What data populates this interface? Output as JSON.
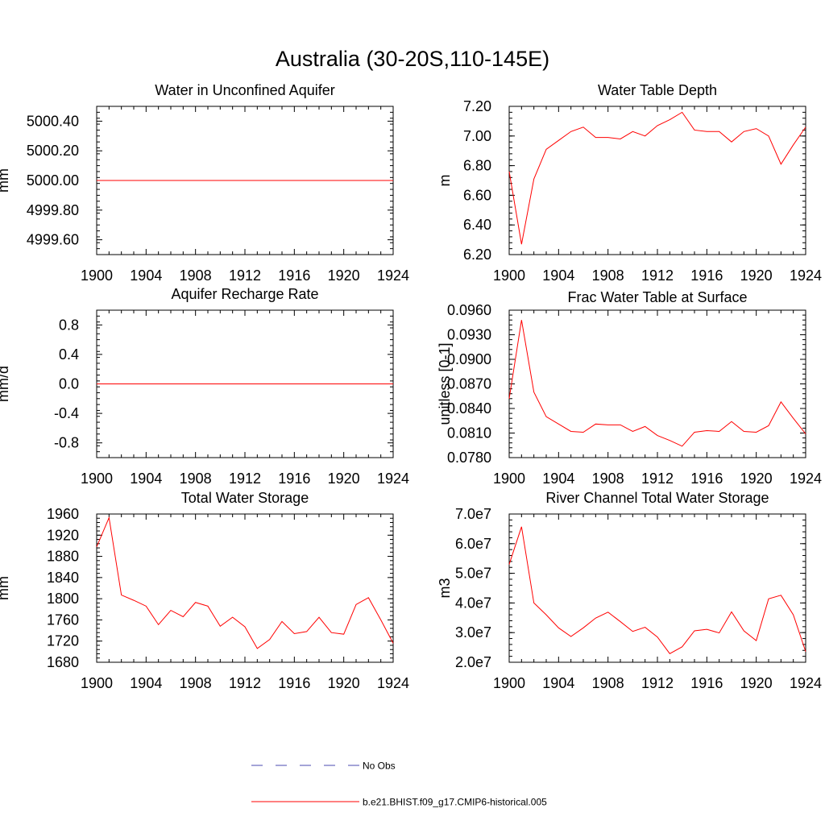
{
  "title": "Australia (30-20S,110-145E)",
  "legend": {
    "items": [
      {
        "label": "No Obs",
        "color": "#4a4ab0",
        "style": "dashed"
      },
      {
        "label": "b.e21.BHIST.f09_g17.CMIP6-historical.005",
        "color": "#ff0000",
        "style": "solid"
      }
    ]
  },
  "chart_data": [
    {
      "type": "line",
      "title": "Water in Unconfined Aquifer",
      "ylabel": "mm",
      "xlim": [
        1900,
        1924
      ],
      "ylim": [
        4999.5,
        5000.5
      ],
      "xticks": [
        "1900",
        "1904",
        "1908",
        "1912",
        "1916",
        "1920",
        "1924"
      ],
      "yticks": [
        {
          "value": 4999.6,
          "label": "4999.60"
        },
        {
          "value": 4999.8,
          "label": "4999.80"
        },
        {
          "value": 5000.0,
          "label": "5000.00"
        },
        {
          "value": 5000.2,
          "label": "5000.20"
        },
        {
          "value": 5000.4,
          "label": "5000.40"
        }
      ],
      "x": [
        1900,
        1901,
        1902,
        1903,
        1904,
        1905,
        1906,
        1907,
        1908,
        1909,
        1910,
        1911,
        1912,
        1913,
        1914,
        1915,
        1916,
        1917,
        1918,
        1919,
        1920,
        1921,
        1922,
        1923,
        1924
      ],
      "values": [
        5000,
        5000,
        5000,
        5000,
        5000,
        5000,
        5000,
        5000,
        5000,
        5000,
        5000,
        5000,
        5000,
        5000,
        5000,
        5000,
        5000,
        5000,
        5000,
        5000,
        5000,
        5000,
        5000,
        5000,
        5000
      ]
    },
    {
      "type": "line",
      "title": "Water Table Depth",
      "ylabel": "m",
      "xlim": [
        1900,
        1924
      ],
      "ylim": [
        6.2,
        7.2
      ],
      "xticks": [
        "1900",
        "1904",
        "1908",
        "1912",
        "1916",
        "1920",
        "1924"
      ],
      "yticks": [
        {
          "value": 6.2,
          "label": "6.20"
        },
        {
          "value": 6.4,
          "label": "6.40"
        },
        {
          "value": 6.6,
          "label": "6.60"
        },
        {
          "value": 6.8,
          "label": "6.80"
        },
        {
          "value": 7.0,
          "label": "7.00"
        },
        {
          "value": 7.2,
          "label": "7.20"
        }
      ],
      "x": [
        1900,
        1901,
        1902,
        1903,
        1904,
        1905,
        1906,
        1907,
        1908,
        1909,
        1910,
        1911,
        1912,
        1913,
        1914,
        1915,
        1916,
        1917,
        1918,
        1919,
        1920,
        1921,
        1922,
        1923,
        1924
      ],
      "values": [
        6.76,
        6.27,
        6.71,
        6.91,
        6.97,
        7.03,
        7.06,
        6.99,
        6.99,
        6.98,
        7.03,
        7.0,
        7.07,
        7.11,
        7.16,
        7.04,
        7.03,
        7.03,
        6.96,
        7.03,
        7.05,
        7.0,
        6.81,
        6.94,
        7.06
      ]
    },
    {
      "type": "line",
      "title": "Aquifer Recharge Rate",
      "ylabel": "mm/d",
      "xlim": [
        1900,
        1924
      ],
      "ylim": [
        -1.0,
        1.0
      ],
      "xticks": [
        "1900",
        "1904",
        "1908",
        "1912",
        "1916",
        "1920",
        "1924"
      ],
      "yticks": [
        {
          "value": -0.8,
          "label": "-0.8"
        },
        {
          "value": -0.4,
          "label": "-0.4"
        },
        {
          "value": 0.0,
          "label": "0.0"
        },
        {
          "value": 0.4,
          "label": "0.4"
        },
        {
          "value": 0.8,
          "label": "0.8"
        }
      ],
      "x": [
        1900,
        1901,
        1902,
        1903,
        1904,
        1905,
        1906,
        1907,
        1908,
        1909,
        1910,
        1911,
        1912,
        1913,
        1914,
        1915,
        1916,
        1917,
        1918,
        1919,
        1920,
        1921,
        1922,
        1923,
        1924
      ],
      "values": [
        0,
        0,
        0,
        0,
        0,
        0,
        0,
        0,
        0,
        0,
        0,
        0,
        0,
        0,
        0,
        0,
        0,
        0,
        0,
        0,
        0,
        0,
        0,
        0,
        0
      ]
    },
    {
      "type": "line",
      "title": "Frac Water Table at Surface",
      "ylabel": "unitless [0-1]",
      "xlim": [
        1900,
        1924
      ],
      "ylim": [
        0.078,
        0.096
      ],
      "xticks": [
        "1900",
        "1904",
        "1908",
        "1912",
        "1916",
        "1920",
        "1924"
      ],
      "yticks": [
        {
          "value": 0.078,
          "label": "0.0780"
        },
        {
          "value": 0.081,
          "label": "0.0810"
        },
        {
          "value": 0.084,
          "label": "0.0840"
        },
        {
          "value": 0.087,
          "label": "0.0870"
        },
        {
          "value": 0.09,
          "label": "0.0900"
        },
        {
          "value": 0.093,
          "label": "0.0930"
        },
        {
          "value": 0.096,
          "label": "0.0960"
        }
      ],
      "x": [
        1900,
        1901,
        1902,
        1903,
        1904,
        1905,
        1906,
        1907,
        1908,
        1909,
        1910,
        1911,
        1912,
        1913,
        1914,
        1915,
        1916,
        1917,
        1918,
        1919,
        1920,
        1921,
        1922,
        1923,
        1924
      ],
      "values": [
        0.0852,
        0.0948,
        0.086,
        0.083,
        0.0821,
        0.0812,
        0.0811,
        0.0821,
        0.082,
        0.082,
        0.0812,
        0.0818,
        0.0807,
        0.0801,
        0.0794,
        0.0811,
        0.0813,
        0.0812,
        0.0824,
        0.0812,
        0.0811,
        0.0819,
        0.0848,
        0.0828,
        0.0809
      ]
    },
    {
      "type": "line",
      "title": "Total Water Storage",
      "ylabel": "mm",
      "xlim": [
        1900,
        1924
      ],
      "ylim": [
        1680,
        1960
      ],
      "xticks": [
        "1900",
        "1904",
        "1908",
        "1912",
        "1916",
        "1920",
        "1924"
      ],
      "yticks": [
        {
          "value": 1680,
          "label": "1680"
        },
        {
          "value": 1720,
          "label": "1720"
        },
        {
          "value": 1760,
          "label": "1760"
        },
        {
          "value": 1800,
          "label": "1800"
        },
        {
          "value": 1840,
          "label": "1840"
        },
        {
          "value": 1880,
          "label": "1880"
        },
        {
          "value": 1920,
          "label": "1920"
        },
        {
          "value": 1960,
          "label": "1960"
        }
      ],
      "x": [
        1900,
        1901,
        1902,
        1903,
        1904,
        1905,
        1906,
        1907,
        1908,
        1909,
        1910,
        1911,
        1912,
        1913,
        1914,
        1915,
        1916,
        1917,
        1918,
        1919,
        1920,
        1921,
        1922,
        1923,
        1924
      ],
      "values": [
        1898,
        1953,
        1807,
        1797,
        1786,
        1751,
        1778,
        1766,
        1793,
        1786,
        1748,
        1765,
        1747,
        1706,
        1723,
        1757,
        1734,
        1738,
        1765,
        1736,
        1733,
        1789,
        1802,
        1760,
        1716
      ]
    },
    {
      "type": "line",
      "title": "River Channel Total Water Storage",
      "ylabel": "m3",
      "xlim": [
        1900,
        1924
      ],
      "ylim": [
        20000000,
        70000000
      ],
      "xticks": [
        "1900",
        "1904",
        "1908",
        "1912",
        "1916",
        "1920",
        "1924"
      ],
      "yticks": [
        {
          "value": 20000000,
          "label": "2.0e7"
        },
        {
          "value": 30000000,
          "label": "3.0e7"
        },
        {
          "value": 40000000,
          "label": "4.0e7"
        },
        {
          "value": 50000000,
          "label": "5.0e7"
        },
        {
          "value": 60000000,
          "label": "6.0e7"
        },
        {
          "value": 70000000,
          "label": "7.0e7"
        }
      ],
      "x": [
        1900,
        1901,
        1902,
        1903,
        1904,
        1905,
        1906,
        1907,
        1908,
        1909,
        1910,
        1911,
        1912,
        1913,
        1914,
        1915,
        1916,
        1917,
        1918,
        1919,
        1920,
        1921,
        1922,
        1923,
        1924
      ],
      "values": [
        53000000,
        65700000,
        40000000,
        36000000,
        31600000,
        28700000,
        31600000,
        34900000,
        36900000,
        33700000,
        30400000,
        31800000,
        28500000,
        22900000,
        25200000,
        30600000,
        31100000,
        29900000,
        37000000,
        30600000,
        27300000,
        41400000,
        42600000,
        36000000,
        23600000
      ]
    }
  ]
}
